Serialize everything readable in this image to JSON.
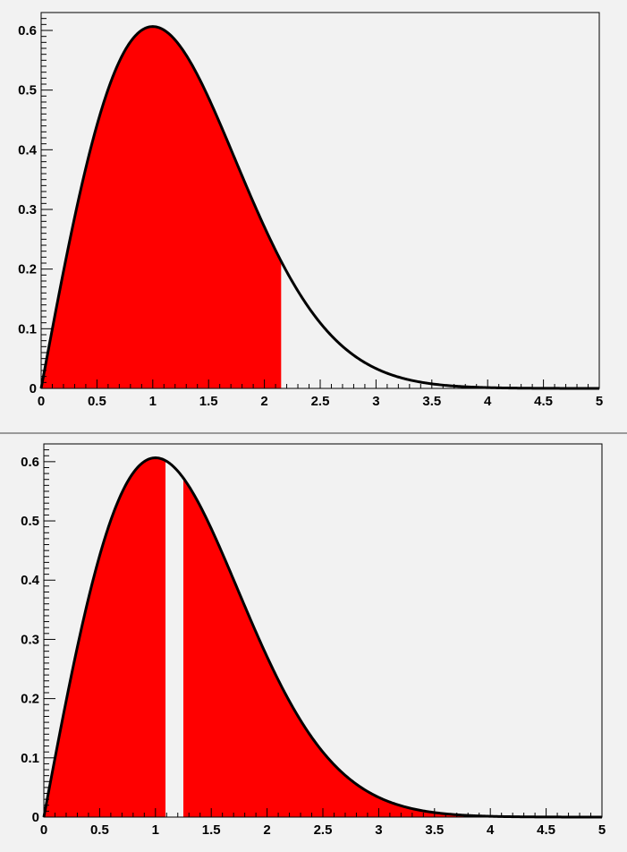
{
  "colors": {
    "background": "#f2f2f2",
    "fill": "#ff0000",
    "curve": "#000000",
    "frame": "#000000",
    "separator": "#9a9a9a"
  },
  "chart_data": [
    {
      "type": "area",
      "function": "x * exp(-x^2 / 2)",
      "xlim": [
        0,
        5
      ],
      "ylim": [
        0,
        0.63
      ],
      "x_ticks": [
        0,
        0.5,
        1,
        1.5,
        2,
        2.5,
        3,
        3.5,
        4,
        4.5,
        5
      ],
      "x_tick_labels": [
        "0",
        "0.5",
        "1",
        "1.5",
        "2",
        "2.5",
        "3",
        "3.5",
        "4",
        "4.5",
        "5"
      ],
      "y_ticks": [
        0,
        0.1,
        0.2,
        0.3,
        0.4,
        0.5,
        0.6
      ],
      "y_tick_labels": [
        "0",
        "0.1",
        "0.2",
        "0.3",
        "0.4",
        "0.5",
        "0.6"
      ],
      "filled_ranges": [
        [
          0,
          2.15
        ]
      ],
      "grid": false
    },
    {
      "type": "area",
      "function": "x * exp(-x^2 / 2)",
      "xlim": [
        0,
        5
      ],
      "ylim": [
        0,
        0.63
      ],
      "x_ticks": [
        0,
        0.5,
        1,
        1.5,
        2,
        2.5,
        3,
        3.5,
        4,
        4.5,
        5
      ],
      "x_tick_labels": [
        "0",
        "0.5",
        "1",
        "1.5",
        "2",
        "2.5",
        "3",
        "3.5",
        "4",
        "4.5",
        "5"
      ],
      "y_ticks": [
        0,
        0.1,
        0.2,
        0.3,
        0.4,
        0.5,
        0.6
      ],
      "y_tick_labels": [
        "0",
        "0.1",
        "0.2",
        "0.3",
        "0.4",
        "0.5",
        "0.6"
      ],
      "filled_ranges": [
        [
          0,
          1.09
        ],
        [
          1.25,
          5
        ]
      ],
      "grid": false
    }
  ]
}
